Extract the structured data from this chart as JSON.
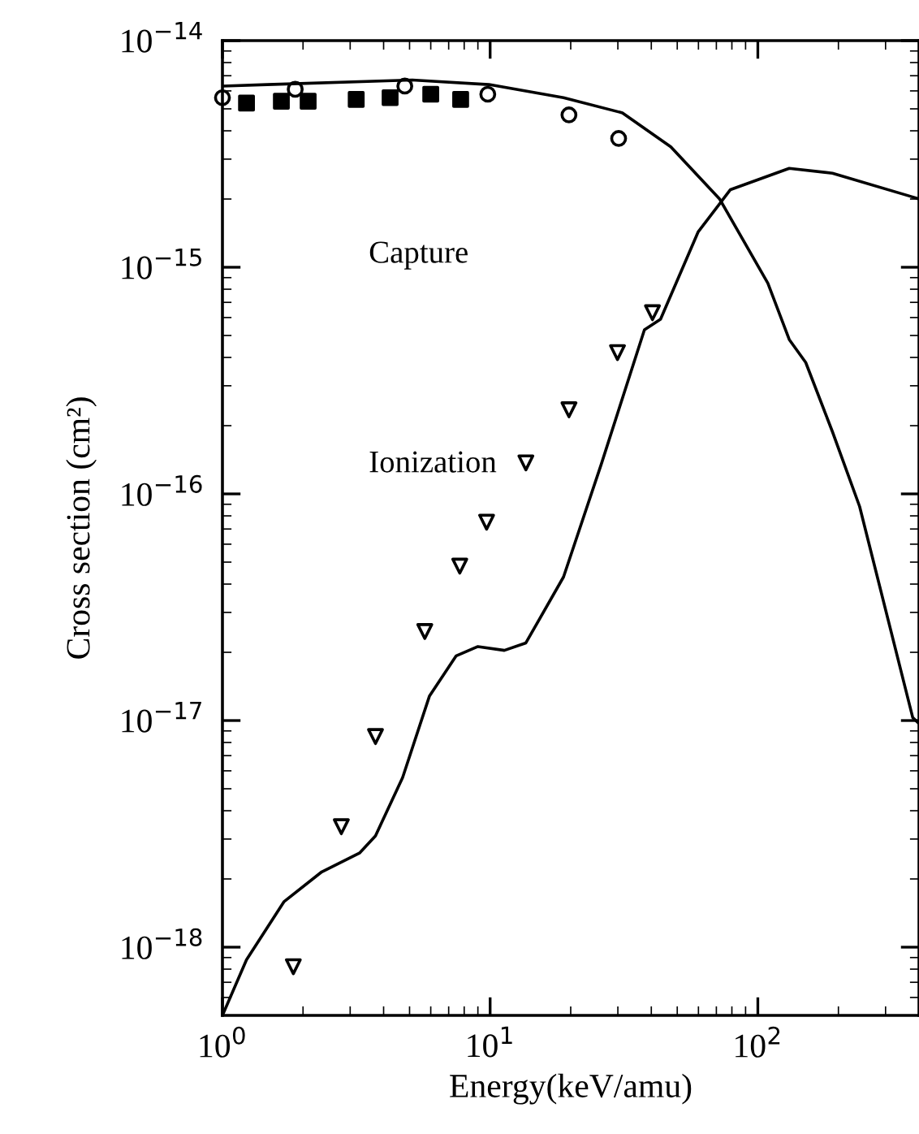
{
  "chart_data": {
    "type": "line",
    "xlabel": "Energy(keV/amu)",
    "ylabel": "Cross section (cm²)",
    "log": "xy",
    "grid": false,
    "xlim": [
      1,
      400
    ],
    "ylim": [
      5e-19,
      1e-14
    ],
    "xticks": [
      {
        "value": 1,
        "label": "10$^{0}$"
      },
      {
        "value": 10,
        "label": "10$^{1}$"
      },
      {
        "value": 100,
        "label": "10$^{2}$"
      }
    ],
    "yticks": [
      {
        "value": 1e-18,
        "label": "10$^{−18}$"
      },
      {
        "value": 1e-17,
        "label": "10$^{−17}$"
      },
      {
        "value": 1e-16,
        "label": "10$^{−16}$"
      },
      {
        "value": 1e-15,
        "label": "10$^{−15}$"
      },
      {
        "value": 1e-14,
        "label": "10$^{−14}$"
      }
    ],
    "annotations": [
      "Capture",
      "Ionization"
    ],
    "series": [
      {
        "color": "#000000",
        "marker": "none",
        "x": [
          1,
          1.47,
          5.1,
          9.9,
          18.8,
          31.2,
          47.3,
          72,
          109,
          131,
          151,
          190,
          240,
          379,
          400
        ],
        "values": [
          6.3e-15,
          6.4e-15,
          6.7e-15,
          6.4e-15,
          5.6e-15,
          4.8e-15,
          3.4e-15,
          2e-15,
          8.5e-16,
          4.8e-16,
          3.8e-16,
          1.88e-16,
          8.8e-17,
          1.03e-17,
          9.7e-18
        ]
      },
      {
        "color": "#000000",
        "marker": "none",
        "x": [
          1,
          1.23,
          1.7,
          2.35,
          3.25,
          3.73,
          4.71,
          5.93,
          7.47,
          9.0,
          11.3,
          13.6,
          18.8,
          26,
          37.7,
          43.3,
          59.8,
          79,
          131,
          190,
          380,
          400
        ],
        "values": [
          5e-19,
          8.8e-19,
          1.59e-18,
          2.15e-18,
          2.6e-18,
          3.1e-18,
          5.6e-18,
          1.28e-17,
          1.93e-17,
          2.12e-17,
          2.04e-17,
          2.2e-17,
          4.3e-17,
          1.35e-16,
          5.3e-16,
          5.9e-16,
          1.43e-15,
          2.2e-15,
          2.73e-15,
          2.6e-15,
          2.04e-15,
          2e-15
        ]
      },
      {
        "type": "scatter",
        "color": "#000000",
        "marker": "triangle",
        "x": [
          1.84,
          2.78,
          3.73,
          5.7,
          7.7,
          9.7,
          13.6,
          19.7,
          29.9,
          40.4
        ],
        "values": [
          8.2e-19,
          3.4e-18,
          8.5e-18,
          2.47e-17,
          4.8e-17,
          7.5e-17,
          1.37e-16,
          2.35e-16,
          4.2e-16,
          6.3e-16
        ]
      },
      {
        "type": "scatter",
        "color": "#000000",
        "marker": "circle",
        "x": [
          1.0,
          1.87,
          4.8,
          9.8,
          19.7,
          30.2
        ],
        "values": [
          5.6e-15,
          6.1e-15,
          6.3e-15,
          5.8e-15,
          4.7e-15,
          3.7e-15
        ]
      },
      {
        "type": "scatter",
        "color": "#000000",
        "marker": "square",
        "x": [
          1.23,
          1.66,
          2.09,
          3.16,
          4.23,
          6.0,
          7.76
        ],
        "values": [
          5.3e-15,
          5.4e-15,
          5.4e-15,
          5.5e-15,
          5.6e-15,
          5.8e-15,
          5.5e-15
        ]
      }
    ]
  }
}
